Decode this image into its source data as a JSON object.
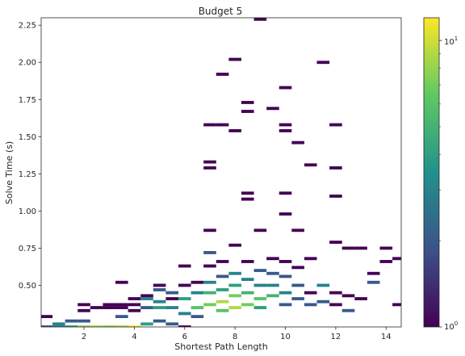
{
  "chart_data": {
    "type": "heatmap",
    "title": "Budget 5",
    "xlabel": "Shortest Path Length",
    "ylabel": "Solve Time (s)",
    "xlim": [
      0.3,
      14.6
    ],
    "ylim": [
      0.22,
      2.3
    ],
    "x_ticks": [
      2,
      4,
      6,
      8,
      10,
      12,
      14
    ],
    "x_tick_labels": [
      "2",
      "4",
      "6",
      "8",
      "10",
      "12",
      "14"
    ],
    "y_ticks": [
      0.5,
      0.75,
      1.0,
      1.25,
      1.5,
      1.75,
      2.0,
      2.25
    ],
    "y_tick_labels": [
      "0.50",
      "0.75",
      "1.00",
      "1.25",
      "1.50",
      "1.75",
      "2.00",
      "2.25"
    ],
    "bin_width_x": 0.5,
    "bin_height_y": 0.0208,
    "colorbar": {
      "scale": "log",
      "colormap": "viridis",
      "min": 1,
      "max": 12,
      "tick_labels": [
        "10^0",
        "10^1"
      ],
      "colors": [
        "#440154",
        "#3b528b",
        "#21918c",
        "#5ec962",
        "#fde725"
      ]
    },
    "cells": [
      [
        0.5,
        0.29,
        1
      ],
      [
        0.5,
        0.22,
        2
      ],
      [
        1.0,
        0.24,
        3
      ],
      [
        1.0,
        0.22,
        3
      ],
      [
        1.5,
        0.22,
        4
      ],
      [
        1.5,
        0.26,
        2
      ],
      [
        2.0,
        0.37,
        1
      ],
      [
        2.0,
        0.33,
        1
      ],
      [
        2.0,
        0.22,
        8
      ],
      [
        2.0,
        0.26,
        2
      ],
      [
        2.5,
        0.22,
        9
      ],
      [
        2.5,
        0.35,
        1
      ],
      [
        3.0,
        0.22,
        8
      ],
      [
        3.0,
        0.37,
        1
      ],
      [
        3.0,
        0.35,
        1
      ],
      [
        3.5,
        0.37,
        1
      ],
      [
        3.5,
        0.35,
        1
      ],
      [
        3.5,
        0.29,
        2
      ],
      [
        3.5,
        0.22,
        9
      ],
      [
        3.5,
        0.52,
        1
      ],
      [
        4.0,
        0.41,
        1
      ],
      [
        4.0,
        0.22,
        12
      ],
      [
        4.0,
        0.37,
        1
      ],
      [
        4.0,
        0.33,
        1
      ],
      [
        4.5,
        0.43,
        1
      ],
      [
        4.5,
        0.35,
        2
      ],
      [
        4.5,
        0.24,
        4
      ],
      [
        4.5,
        0.41,
        3
      ],
      [
        5.0,
        0.47,
        2
      ],
      [
        5.0,
        0.39,
        3
      ],
      [
        5.0,
        0.26,
        2
      ],
      [
        5.0,
        0.35,
        4
      ],
      [
        5.0,
        0.5,
        1
      ],
      [
        5.5,
        0.45,
        2
      ],
      [
        5.5,
        0.41,
        1
      ],
      [
        5.5,
        0.35,
        3
      ],
      [
        5.5,
        0.24,
        2
      ],
      [
        6.0,
        0.31,
        3
      ],
      [
        6.0,
        0.41,
        4
      ],
      [
        6.0,
        0.5,
        1
      ],
      [
        6.0,
        0.63,
        1
      ],
      [
        6.0,
        0.22,
        1
      ],
      [
        6.5,
        0.35,
        6
      ],
      [
        6.5,
        0.45,
        3
      ],
      [
        6.5,
        0.52,
        1
      ],
      [
        6.5,
        0.29,
        2
      ],
      [
        7.0,
        0.37,
        7
      ],
      [
        7.0,
        0.45,
        5
      ],
      [
        7.0,
        0.52,
        3
      ],
      [
        7.0,
        0.63,
        1
      ],
      [
        7.0,
        0.72,
        2
      ],
      [
        7.0,
        0.87,
        1
      ],
      [
        7.0,
        1.33,
        1
      ],
      [
        7.0,
        1.29,
        1
      ],
      [
        7.0,
        1.58,
        1
      ],
      [
        7.5,
        0.33,
        6
      ],
      [
        7.5,
        0.39,
        9
      ],
      [
        7.5,
        0.47,
        4
      ],
      [
        7.5,
        0.56,
        2
      ],
      [
        7.5,
        0.66,
        1
      ],
      [
        7.5,
        1.92,
        1
      ],
      [
        7.5,
        1.58,
        1
      ],
      [
        8.0,
        0.35,
        9
      ],
      [
        8.0,
        0.43,
        7
      ],
      [
        8.0,
        0.5,
        4
      ],
      [
        8.0,
        0.58,
        3
      ],
      [
        8.0,
        0.77,
        1
      ],
      [
        8.0,
        2.02,
        1
      ],
      [
        8.0,
        1.54,
        1
      ],
      [
        8.5,
        0.37,
        7
      ],
      [
        8.5,
        0.45,
        5
      ],
      [
        8.5,
        0.54,
        3
      ],
      [
        8.5,
        0.66,
        1
      ],
      [
        8.5,
        1.12,
        1
      ],
      [
        8.5,
        1.08,
        1
      ],
      [
        8.5,
        1.67,
        1
      ],
      [
        8.5,
        1.73,
        1
      ],
      [
        9.0,
        0.41,
        6
      ],
      [
        9.0,
        0.35,
        4
      ],
      [
        9.0,
        0.5,
        3
      ],
      [
        9.0,
        0.6,
        2
      ],
      [
        9.0,
        0.87,
        1
      ],
      [
        9.0,
        2.29,
        1
      ],
      [
        9.5,
        0.43,
        5
      ],
      [
        9.5,
        0.5,
        3
      ],
      [
        9.5,
        0.58,
        2
      ],
      [
        9.5,
        1.69,
        1
      ],
      [
        9.5,
        0.68,
        1
      ],
      [
        10.0,
        0.45,
        3
      ],
      [
        10.0,
        0.37,
        2
      ],
      [
        10.0,
        0.56,
        2
      ],
      [
        10.0,
        0.66,
        1
      ],
      [
        10.0,
        0.98,
        1
      ],
      [
        10.0,
        1.12,
        1
      ],
      [
        10.0,
        1.58,
        1
      ],
      [
        10.0,
        1.54,
        1
      ],
      [
        10.0,
        1.83,
        1
      ],
      [
        10.5,
        0.41,
        2
      ],
      [
        10.5,
        0.5,
        2
      ],
      [
        10.5,
        0.62,
        1
      ],
      [
        10.5,
        0.87,
        1
      ],
      [
        10.5,
        1.46,
        1
      ],
      [
        11.0,
        0.37,
        2
      ],
      [
        11.0,
        0.45,
        1
      ],
      [
        11.0,
        0.68,
        1
      ],
      [
        11.0,
        1.31,
        1
      ],
      [
        11.5,
        0.39,
        2
      ],
      [
        11.5,
        0.5,
        3
      ],
      [
        11.5,
        2.0,
        1
      ],
      [
        12.0,
        0.37,
        1
      ],
      [
        12.0,
        0.45,
        1
      ],
      [
        12.0,
        0.79,
        1
      ],
      [
        12.0,
        1.1,
        1
      ],
      [
        12.0,
        1.29,
        1
      ],
      [
        12.0,
        1.58,
        1
      ],
      [
        12.5,
        0.43,
        1
      ],
      [
        12.5,
        0.33,
        2
      ],
      [
        12.5,
        0.75,
        1
      ],
      [
        13.0,
        0.75,
        1
      ],
      [
        13.0,
        0.41,
        1
      ],
      [
        13.5,
        0.52,
        2
      ],
      [
        13.5,
        0.58,
        1
      ],
      [
        14.0,
        0.75,
        1
      ],
      [
        14.0,
        0.66,
        1
      ],
      [
        14.5,
        0.37,
        1
      ],
      [
        14.5,
        0.68,
        1
      ]
    ]
  }
}
